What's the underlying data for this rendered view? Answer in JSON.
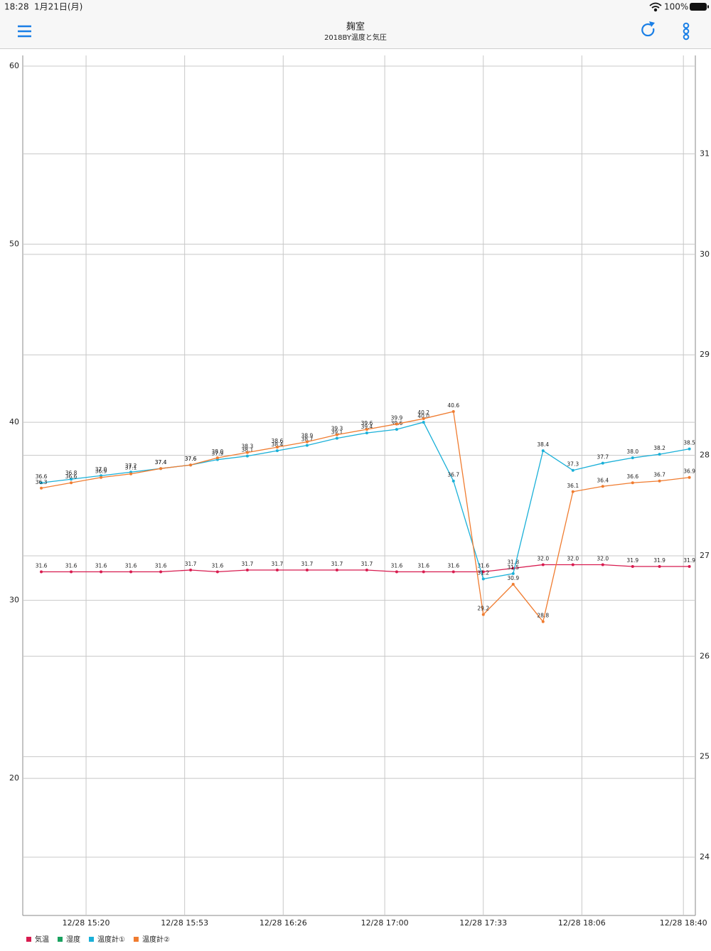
{
  "status_bar": {
    "time": "18:28",
    "date": "1月21日(月)",
    "battery": "100%"
  },
  "chart_data": {
    "type": "line",
    "title": "麹室",
    "subtitle": "2018BY温度と気圧",
    "x": [
      905,
      915,
      925,
      935,
      945,
      955,
      964,
      974,
      984,
      994,
      1004,
      1014,
      1024,
      1033,
      1043,
      1053,
      1063,
      1073,
      1083,
      1093,
      1103,
      1112,
      1122
    ],
    "xlim": [
      898.8,
      1124
    ],
    "xticks": [
      {
        "value": 920,
        "label": "12/28 15:20"
      },
      {
        "value": 953,
        "label": "12/28 15:53"
      },
      {
        "value": 986,
        "label": "12/28 16:26"
      },
      {
        "value": 1020,
        "label": "12/28 17:00"
      },
      {
        "value": 1053,
        "label": "12/28 17:33"
      },
      {
        "value": 1086,
        "label": "12/28 18:06"
      },
      {
        "value": 1120,
        "label": "12/28 18:40"
      }
    ],
    "ylim": [
      12.3,
      60.6
    ],
    "yticks": [
      20,
      30,
      40,
      50,
      60
    ],
    "y2lim": [
      23.42,
      31.98
    ],
    "y2ticks": [
      24,
      25,
      26,
      27,
      28,
      29,
      30,
      31
    ],
    "grid": true,
    "series": [
      {
        "name": "気温",
        "color": "#d81b4f",
        "values": [
          31.6,
          31.6,
          31.6,
          31.6,
          31.6,
          31.7,
          31.6,
          31.7,
          31.7,
          31.7,
          31.7,
          31.7,
          31.6,
          31.6,
          31.6,
          31.6,
          31.8,
          32.0,
          32.0,
          32.0,
          31.9,
          31.9,
          31.9
        ],
        "value_labels": [
          "31.6",
          "31.6",
          "31.6",
          "31.6",
          "31.6",
          "31.7",
          "31.6",
          "31.7",
          "31.7",
          "31.7",
          "31.7",
          "31.7",
          "31.6",
          "31.6",
          "31.6",
          "31.6",
          "31.8",
          "32.0",
          "32.0",
          "32.0",
          "31.9",
          "31.9",
          "31.9"
        ]
      },
      {
        "name": "湿度",
        "color": "#1aa260",
        "axis": "y2",
        "values": [
          null,
          null,
          null,
          null,
          null,
          null,
          null,
          null,
          null,
          null,
          null,
          null,
          null,
          null,
          null,
          null,
          null,
          null,
          null,
          null,
          null,
          null,
          null
        ]
      },
      {
        "name": "温度計①",
        "color": "#1ab0d8",
        "values": [
          36.6,
          36.8,
          37.0,
          37.2,
          37.4,
          37.6,
          37.9,
          38.1,
          38.4,
          38.7,
          39.1,
          39.4,
          39.6,
          40.0,
          36.7,
          31.2,
          31.5,
          38.4,
          37.3,
          37.7,
          38.0,
          38.2,
          38.5
        ],
        "value_labels": [
          "36.6",
          "36.8",
          "37.0",
          "37.2",
          "37.4",
          "37.6",
          "37.9",
          "38.1",
          "38.4",
          "38.7",
          "39.1",
          "39.4",
          "39.6",
          "40.0",
          "36.7",
          "31.2",
          "31.5",
          "38.4",
          "37.3",
          "37.7",
          "38.0",
          "38.2",
          "38.5"
        ]
      },
      {
        "name": "温度計②",
        "color": "#f07c30",
        "values": [
          36.3,
          36.6,
          36.9,
          37.1,
          37.4,
          37.6,
          38.0,
          38.3,
          38.6,
          38.9,
          39.3,
          39.6,
          39.9,
          40.2,
          40.6,
          29.2,
          30.9,
          28.8,
          36.1,
          36.4,
          36.6,
          36.7,
          36.9
        ],
        "value_labels": [
          "36.3",
          "36.6",
          "36.9",
          "37.1",
          "37.4",
          "37.6",
          "38.0",
          "38.3",
          "38.6",
          "38.9",
          "39.3",
          "39.6",
          "39.9",
          "40.2",
          "40.6",
          "29.2",
          "30.9",
          "28.8",
          "36.1",
          "36.4",
          "36.6",
          "36.7",
          "36.9"
        ]
      }
    ]
  }
}
